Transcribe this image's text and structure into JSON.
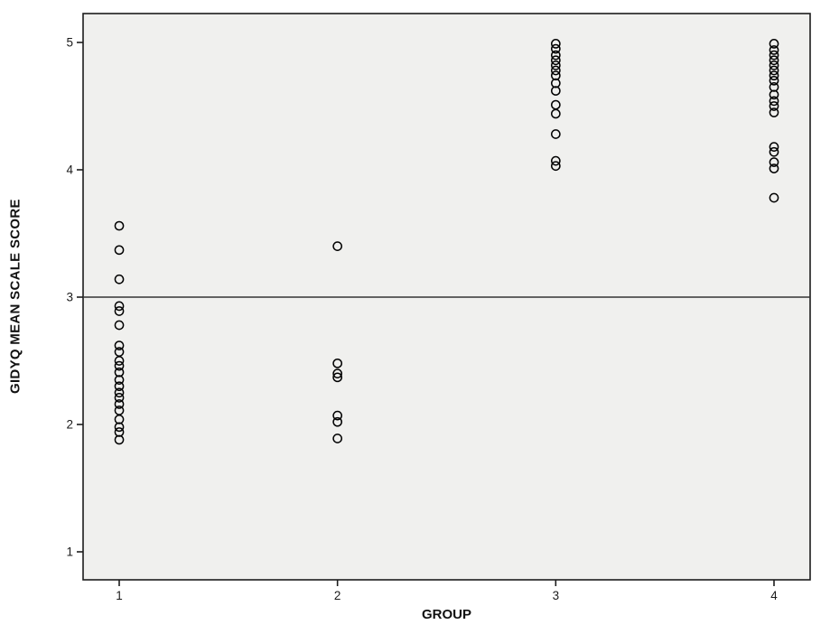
{
  "chart": {
    "xlabel": "GROUP",
    "ylabel": "GIDYQ MEAN SCALE SCORE"
  },
  "chart_data": {
    "type": "scatter",
    "title": "",
    "xlabel": "GROUP",
    "ylabel": "GIDYQ MEAN SCALE SCORE",
    "marker": "open-circle",
    "grid": false,
    "legend": false,
    "xticks": [
      "1",
      "2",
      "3",
      "4"
    ],
    "yticks": [
      "1",
      "2",
      "3",
      "4",
      "5"
    ],
    "xlim": [
      0.55,
      4.2
    ],
    "ylim": [
      0.78,
      5.23
    ],
    "reference_line_y": 3,
    "series": [
      {
        "group": "1",
        "x": 1,
        "values": [
          3.56,
          3.37,
          3.14,
          2.93,
          2.89,
          2.78,
          2.62,
          2.57,
          2.5,
          2.46,
          2.41,
          2.35,
          2.3,
          2.25,
          2.21,
          2.16,
          2.11,
          2.04,
          1.98,
          1.94,
          1.88
        ]
      },
      {
        "group": "2",
        "x": 2,
        "values": [
          3.4,
          2.48,
          2.4,
          2.37,
          2.07,
          2.02,
          1.89
        ]
      },
      {
        "group": "3",
        "x": 3,
        "values": [
          4.99,
          4.95,
          4.9,
          4.86,
          4.82,
          4.78,
          4.74,
          4.68,
          4.62,
          4.51,
          4.44,
          4.28,
          4.07,
          4.03
        ]
      },
      {
        "group": "4",
        "x": 4,
        "values": [
          4.99,
          4.94,
          4.9,
          4.86,
          4.82,
          4.78,
          4.74,
          4.7,
          4.65,
          4.59,
          4.54,
          4.5,
          4.45,
          4.18,
          4.14,
          4.06,
          4.01,
          3.78
        ]
      }
    ],
    "colors": {
      "plot_background": "#f0f0ee",
      "frame": "#1c1c1c",
      "marker_stroke": "#000000",
      "reference_line": "#333333",
      "tick_text": "#1a1a1a"
    }
  }
}
